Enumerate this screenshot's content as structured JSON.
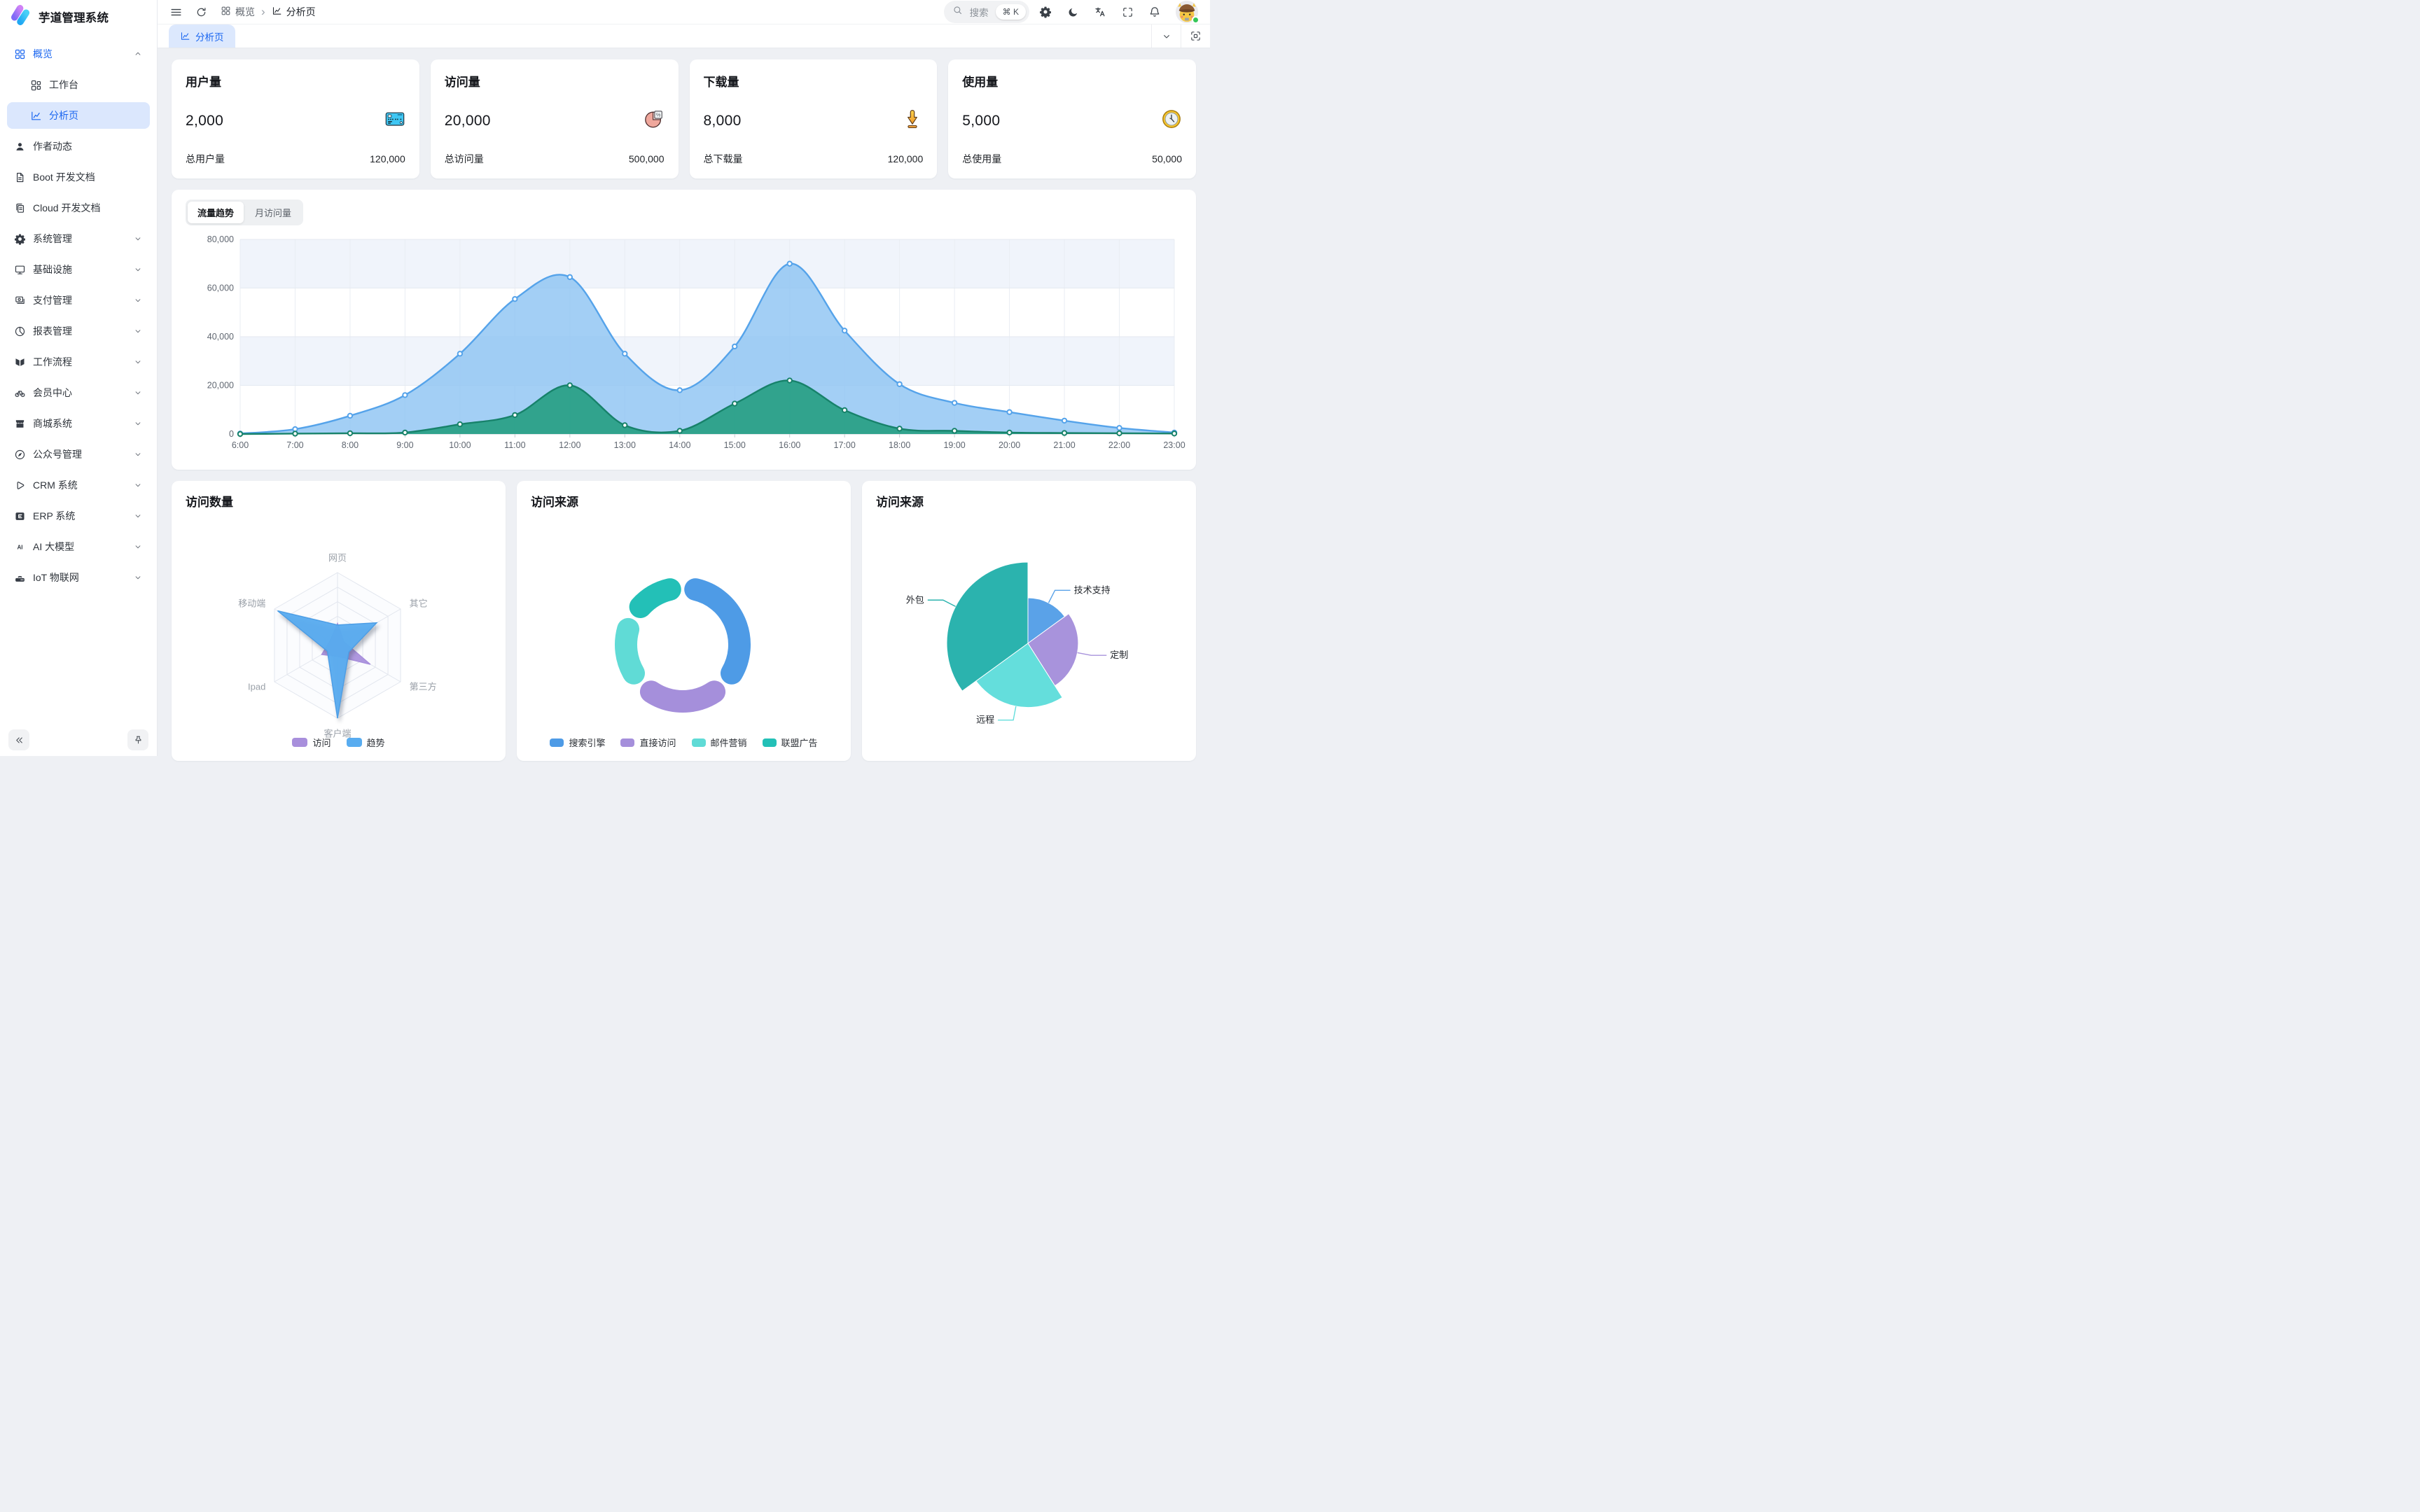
{
  "app": {
    "title": "芋道管理系统"
  },
  "sidebar": {
    "items": [
      {
        "id": "overview",
        "icon": "grid",
        "label": "概览",
        "accent": true,
        "chevron": "up"
      },
      {
        "id": "workbench",
        "icon": "grid-small",
        "label": "工作台",
        "child": true
      },
      {
        "id": "analysis",
        "icon": "chart-line",
        "label": "分析页",
        "child": true,
        "active": true
      },
      {
        "id": "author",
        "icon": "user",
        "label": "作者动态"
      },
      {
        "id": "boot-doc",
        "icon": "doc",
        "label": "Boot 开发文档"
      },
      {
        "id": "cloud-doc",
        "icon": "docs",
        "label": "Cloud 开发文档"
      },
      {
        "id": "system",
        "icon": "gear",
        "label": "系统管理",
        "chevron": "down"
      },
      {
        "id": "infra",
        "icon": "monitor",
        "label": "基础设施",
        "chevron": "down"
      },
      {
        "id": "payment",
        "icon": "payment",
        "label": "支付管理",
        "chevron": "down"
      },
      {
        "id": "report",
        "icon": "pie",
        "label": "报表管理",
        "chevron": "down"
      },
      {
        "id": "workflow",
        "icon": "workflow",
        "label": "工作流程",
        "chevron": "down"
      },
      {
        "id": "member",
        "icon": "bicycle",
        "label": "会员中心",
        "chevron": "down"
      },
      {
        "id": "mall",
        "icon": "shop",
        "label": "商城系统",
        "chevron": "down"
      },
      {
        "id": "mp",
        "icon": "compass",
        "label": "公众号管理",
        "chevron": "down"
      },
      {
        "id": "crm",
        "icon": "crm",
        "label": "CRM 系统",
        "chevron": "down"
      },
      {
        "id": "erp",
        "icon": "erp",
        "label": "ERP 系统",
        "chevron": "down"
      },
      {
        "id": "ai",
        "icon": "ai",
        "label": "AI 大模型",
        "chevron": "down"
      },
      {
        "id": "iot",
        "icon": "iot",
        "label": "IoT 物联网",
        "chevron": "down"
      }
    ]
  },
  "header": {
    "breadcrumb": [
      {
        "icon": "grid",
        "label": "概览"
      },
      {
        "icon": "chart-line",
        "label": "分析页"
      }
    ],
    "search": {
      "placeholder": "搜索",
      "shortcut": "⌘ K"
    }
  },
  "tabbar": {
    "active_tab_label": "分析页"
  },
  "stat_cards": [
    {
      "title": "用户量",
      "value": "2,000",
      "icon": "bank-card",
      "total_label": "总用户量",
      "total_value": "120,000"
    },
    {
      "title": "访问量",
      "value": "20,000",
      "icon": "pie-chart",
      "total_label": "总访问量",
      "total_value": "500,000"
    },
    {
      "title": "下载量",
      "value": "8,000",
      "icon": "download",
      "total_label": "总下载量",
      "total_value": "120,000"
    },
    {
      "title": "使用量",
      "value": "5,000",
      "icon": "clock",
      "total_label": "总使用量",
      "total_value": "50,000"
    }
  ],
  "traffic": {
    "tabs": [
      "流量趋势",
      "月访问量"
    ],
    "active_index": 0
  },
  "panels": {
    "radar_title": "访问数量",
    "donut_title": "访问来源",
    "rose_title": "访问来源"
  },
  "colors": {
    "accent": "#1a66f0",
    "page_bg": "#eef0f4",
    "active_tab_bg": "#dce8fd",
    "area_blue": "#55a3ea",
    "area_blue_fill": "#8cc3f2",
    "area_green": "#17826a",
    "area_green_fill": "#2ca188"
  },
  "chart_data": [
    {
      "type": "area",
      "title": "流量趋势",
      "x": [
        "6:00",
        "7:00",
        "8:00",
        "9:00",
        "10:00",
        "11:00",
        "12:00",
        "13:00",
        "14:00",
        "15:00",
        "16:00",
        "17:00",
        "18:00",
        "19:00",
        "20:00",
        "21:00",
        "22:00",
        "23:00"
      ],
      "ylim": [
        0,
        80000
      ],
      "yticks": [
        0,
        20000,
        40000,
        60000,
        80000
      ],
      "grid": true,
      "legend_position": "none",
      "series": [
        {
          "name": "blue-series",
          "color": "#55a3ea",
          "fill": "#8cc3f2",
          "values": [
            200,
            2000,
            7500,
            16000,
            33000,
            55500,
            64500,
            33000,
            18000,
            36000,
            70000,
            42500,
            20500,
            12800,
            9000,
            5500,
            2500,
            600
          ]
        },
        {
          "name": "green-series",
          "color": "#17826a",
          "fill": "#2ca188",
          "values": [
            0,
            150,
            300,
            600,
            4000,
            7800,
            20000,
            3600,
            1300,
            12500,
            22000,
            9800,
            2200,
            1300,
            600,
            400,
            300,
            200
          ]
        }
      ]
    },
    {
      "type": "radar",
      "title": "访问数量",
      "indicators": [
        "网页",
        "其它",
        "第三方",
        "客户端",
        "Ipad",
        "移动端"
      ],
      "max": 100,
      "legend_position": "bottom",
      "series": [
        {
          "name": "访问",
          "color": "#a88fdc",
          "values": [
            30,
            10,
            52,
            15,
            25,
            12
          ]
        },
        {
          "name": "趋势",
          "color": "#58acf0",
          "values": [
            28,
            62,
            18,
            100,
            16,
            95
          ]
        }
      ]
    },
    {
      "type": "pie",
      "subtype": "donut",
      "title": "访问来源",
      "unit": "percent",
      "legend_position": "bottom",
      "slices": [
        {
          "name": "搜索引擎",
          "value": 37,
          "color": "#4e9be6"
        },
        {
          "name": "直接访问",
          "value": 26,
          "color": "#a58fdb"
        },
        {
          "name": "邮件营销",
          "value": 20,
          "color": "#60dbd6"
        },
        {
          "name": "联盟广告",
          "value": 17,
          "color": "#23c0b7"
        }
      ]
    },
    {
      "type": "pie",
      "subtype": "rose",
      "title": "访问来源",
      "unit": "percent",
      "labels": "outside",
      "slices": [
        {
          "name": "技术支持",
          "value": 15,
          "color": "#5aa2e8",
          "radius": 0.56
        },
        {
          "name": "定制",
          "value": 26,
          "color": "#a893dc",
          "radius": 0.62
        },
        {
          "name": "远程",
          "value": 24,
          "color": "#64dedc",
          "radius": 0.79
        },
        {
          "name": "外包",
          "value": 35,
          "color": "#2bb3ae",
          "radius": 1.0
        }
      ]
    }
  ]
}
